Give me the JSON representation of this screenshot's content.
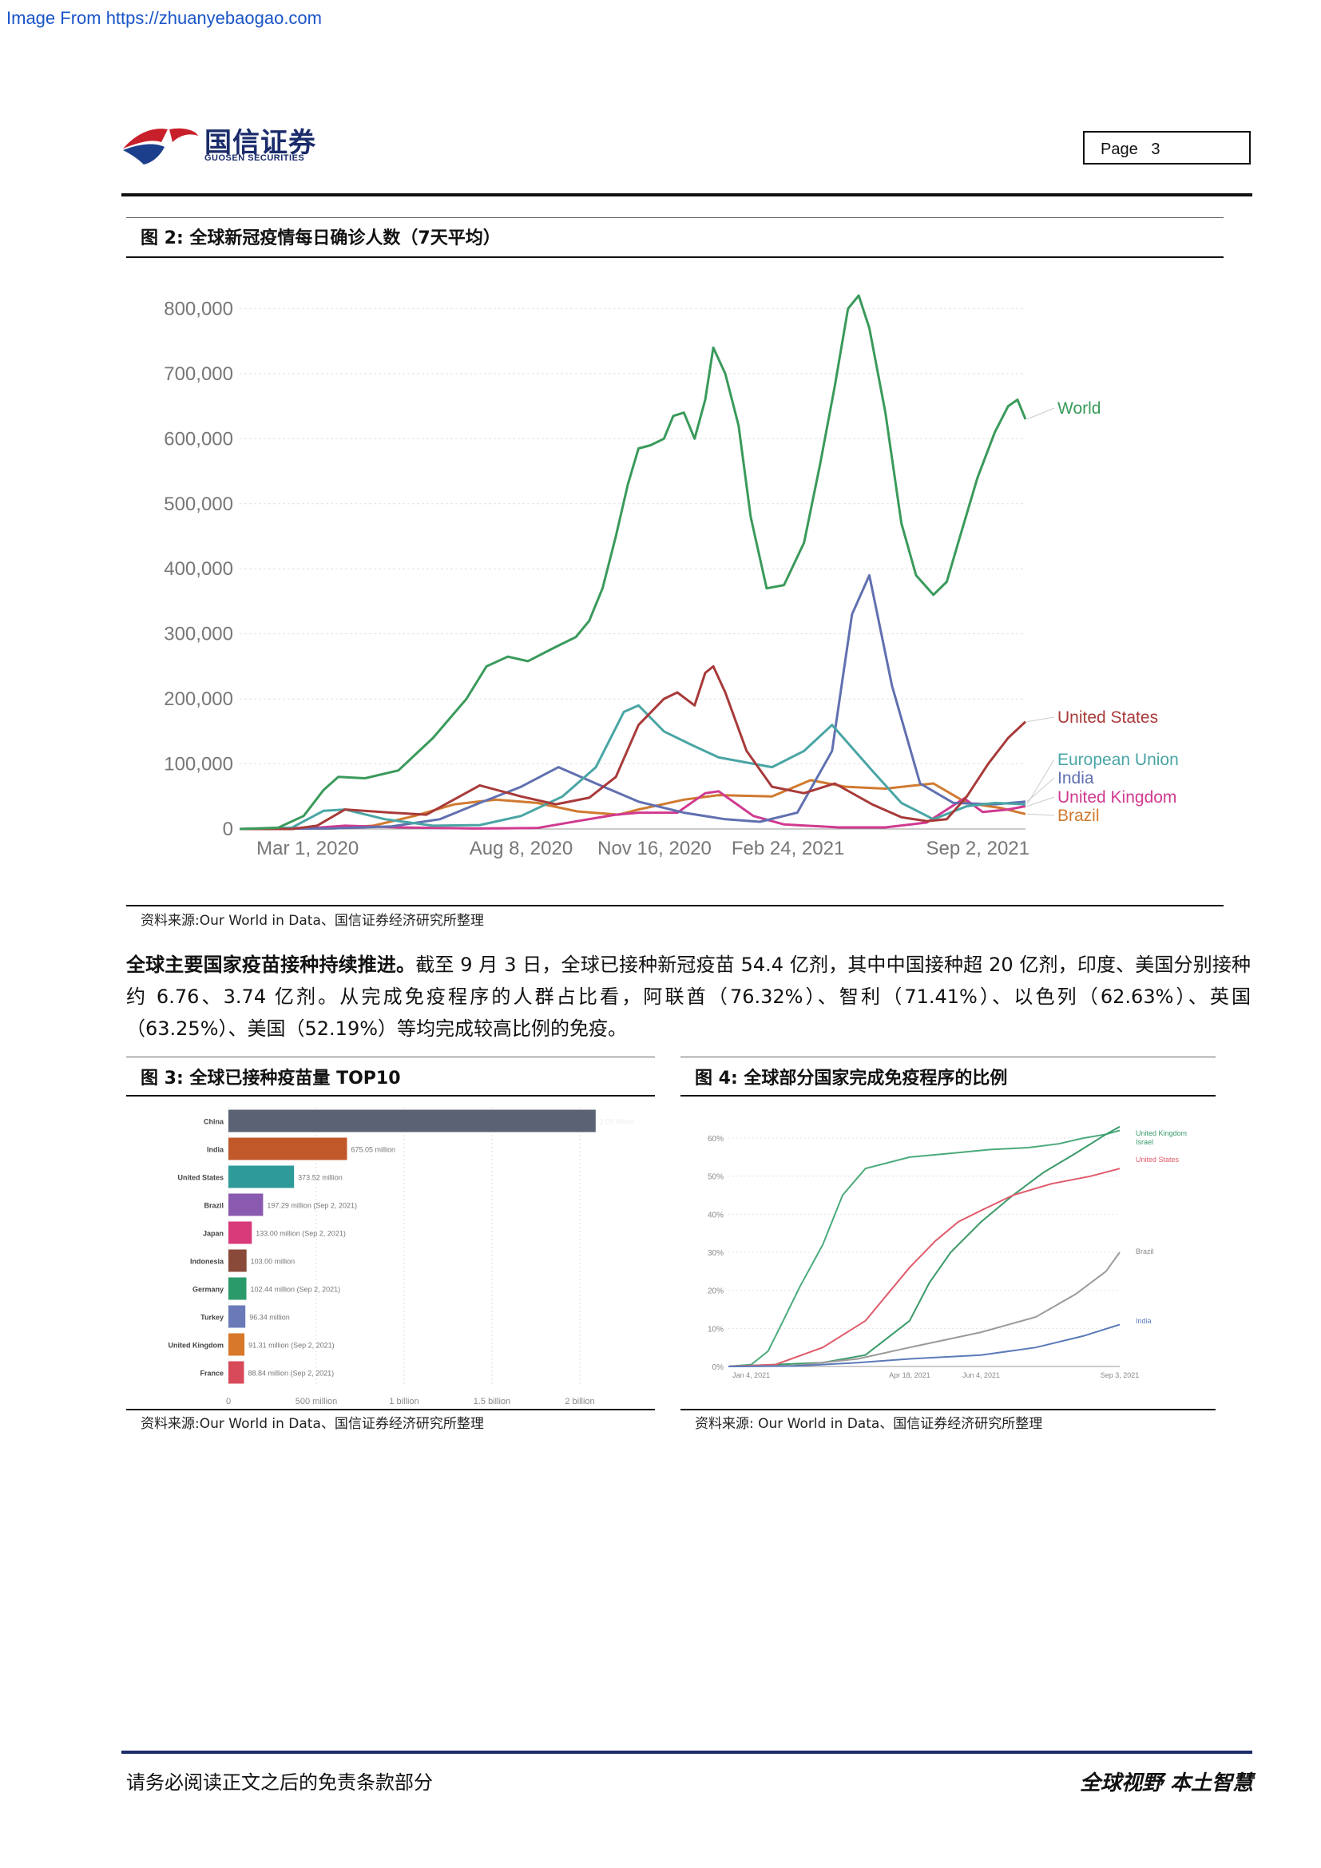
{
  "watermark": "Image From https://zhuanyebaogao.com",
  "header": {
    "logo_cn": "国信证券",
    "logo_en": "GUOSEN SECURITIES",
    "page_label": "Page",
    "page_number": "3"
  },
  "figure2": {
    "title": "图 2:  全球新冠疫情每日确诊人数（7天平均）",
    "source": "资料来源:Our World in Data、国信证券经济研究所整理",
    "chart_data": {
      "type": "line",
      "x_tick_labels": [
        "Mar 1, 2020",
        "Aug 8, 2020",
        "Nov 16, 2020",
        "Feb 24, 2021",
        "Sep 2, 2021"
      ],
      "y_tick_labels": [
        "0",
        "100,000",
        "200,000",
        "300,000",
        "400,000",
        "500,000",
        "600,000",
        "700,000",
        "800,000"
      ],
      "ylim": [
        0,
        830000
      ],
      "x_range": [
        "2020-01-22",
        "2021-09-02"
      ],
      "grid": true,
      "series": [
        {
          "name": "World",
          "color": "#3a9a5b",
          "x": [
            "2020-01-22",
            "2020-02-20",
            "2020-03-10",
            "2020-03-25",
            "2020-04-05",
            "2020-04-25",
            "2020-05-20",
            "2020-06-15",
            "2020-07-10",
            "2020-07-25",
            "2020-08-10",
            "2020-08-25",
            "2020-09-15",
            "2020-09-30",
            "2020-10-10",
            "2020-10-20",
            "2020-10-30",
            "2020-11-08",
            "2020-11-16",
            "2020-11-25",
            "2020-12-05",
            "2020-12-12",
            "2020-12-20",
            "2020-12-28",
            "2021-01-05",
            "2021-01-11",
            "2021-01-20",
            "2021-01-30",
            "2021-02-08",
            "2021-02-20",
            "2021-03-05",
            "2021-03-20",
            "2021-04-01",
            "2021-04-12",
            "2021-04-22",
            "2021-04-30",
            "2021-05-08",
            "2021-05-20",
            "2021-06-01",
            "2021-06-12",
            "2021-06-25",
            "2021-07-05",
            "2021-07-15",
            "2021-07-28",
            "2021-08-10",
            "2021-08-20",
            "2021-08-27",
            "2021-09-02"
          ],
          "y": [
            0,
            2000,
            20000,
            60000,
            80000,
            78000,
            90000,
            140000,
            200000,
            250000,
            265000,
            258000,
            280000,
            295000,
            320000,
            370000,
            450000,
            530000,
            585000,
            590000,
            600000,
            635000,
            640000,
            600000,
            660000,
            740000,
            700000,
            620000,
            480000,
            370000,
            375000,
            440000,
            560000,
            680000,
            800000,
            820000,
            770000,
            640000,
            470000,
            390000,
            360000,
            380000,
            450000,
            540000,
            610000,
            650000,
            660000,
            630000
          ]
        },
        {
          "name": "United States",
          "color": "#a83a3a",
          "x": [
            "2020-01-22",
            "2020-03-01",
            "2020-03-20",
            "2020-04-10",
            "2020-05-15",
            "2020-06-10",
            "2020-07-20",
            "2020-08-20",
            "2020-09-15",
            "2020-10-10",
            "2020-10-30",
            "2020-11-16",
            "2020-12-05",
            "2020-12-15",
            "2020-12-28",
            "2021-01-05",
            "2021-01-11",
            "2021-01-20",
            "2021-02-05",
            "2021-02-24",
            "2021-03-20",
            "2021-04-12",
            "2021-05-10",
            "2021-06-01",
            "2021-06-20",
            "2021-07-05",
            "2021-07-20",
            "2021-08-05",
            "2021-08-20",
            "2021-09-02"
          ],
          "y": [
            0,
            0,
            5000,
            30000,
            25000,
            22000,
            67000,
            50000,
            38000,
            48000,
            80000,
            160000,
            200000,
            210000,
            190000,
            240000,
            250000,
            210000,
            120000,
            65000,
            55000,
            70000,
            38000,
            18000,
            12000,
            15000,
            50000,
            100000,
            140000,
            165000
          ]
        },
        {
          "name": "European Union",
          "color": "#4aa5a5",
          "x": [
            "2020-01-22",
            "2020-03-01",
            "2020-03-25",
            "2020-04-10",
            "2020-05-10",
            "2020-06-15",
            "2020-07-20",
            "2020-08-20",
            "2020-09-20",
            "2020-10-15",
            "2020-11-05",
            "2020-11-16",
            "2020-12-05",
            "2020-12-25",
            "2021-01-15",
            "2021-02-24",
            "2021-03-20",
            "2021-04-10",
            "2021-05-10",
            "2021-06-01",
            "2021-06-25",
            "2021-07-20",
            "2021-08-10",
            "2021-09-02"
          ],
          "y": [
            0,
            2000,
            28000,
            30000,
            15000,
            5000,
            6000,
            20000,
            50000,
            95000,
            180000,
            190000,
            150000,
            130000,
            110000,
            95000,
            120000,
            160000,
            90000,
            40000,
            15000,
            35000,
            40000,
            38000
          ]
        },
        {
          "name": "India",
          "color": "#6070b0",
          "x": [
            "2020-01-22",
            "2020-04-01",
            "2020-05-15",
            "2020-06-20",
            "2020-07-20",
            "2020-08-20",
            "2020-09-17",
            "2020-10-15",
            "2020-11-16",
            "2020-12-20",
            "2021-01-20",
            "2021-02-15",
            "2021-03-15",
            "2021-04-10",
            "2021-04-25",
            "2021-05-08",
            "2021-05-25",
            "2021-06-15",
            "2021-07-10",
            "2021-08-10",
            "2021-09-02"
          ],
          "y": [
            0,
            1000,
            4000,
            15000,
            40000,
            65000,
            95000,
            70000,
            42000,
            25000,
            15000,
            11000,
            25000,
            120000,
            330000,
            390000,
            220000,
            70000,
            40000,
            38000,
            42000
          ]
        },
        {
          "name": "United Kingdom",
          "color": "#d03a90",
          "x": [
            "2020-01-22",
            "2020-03-20",
            "2020-04-10",
            "2020-05-20",
            "2020-07-15",
            "2020-09-01",
            "2020-10-01",
            "2020-10-30",
            "2020-11-16",
            "2020-12-15",
            "2021-01-05",
            "2021-01-15",
            "2021-02-10",
            "2021-03-05",
            "2021-04-15",
            "2021-05-20",
            "2021-06-20",
            "2021-07-18",
            "2021-08-01",
            "2021-08-20",
            "2021-09-02"
          ],
          "y": [
            0,
            2000,
            5000,
            2500,
            700,
            1500,
            12000,
            22000,
            25000,
            25000,
            55000,
            58000,
            20000,
            7000,
            2500,
            2500,
            10000,
            47000,
            26000,
            30000,
            35000
          ]
        },
        {
          "name": "Brazil",
          "color": "#d07a30",
          "x": [
            "2020-01-22",
            "2020-04-01",
            "2020-05-01",
            "2020-06-01",
            "2020-07-01",
            "2020-08-01",
            "2020-09-01",
            "2020-10-01",
            "2020-11-01",
            "2020-11-16",
            "2020-12-20",
            "2021-01-15",
            "2021-02-24",
            "2021-03-25",
            "2021-04-20",
            "2021-05-20",
            "2021-06-25",
            "2021-07-20",
            "2021-08-15",
            "2021-09-02"
          ],
          "y": [
            0,
            1000,
            5000,
            20000,
            38000,
            45000,
            40000,
            27000,
            22000,
            30000,
            45000,
            52000,
            50000,
            75000,
            65000,
            62000,
            70000,
            40000,
            32000,
            23000
          ]
        }
      ]
    }
  },
  "paragraph": {
    "lead": "全球主要国家疫苗接种持续推进。",
    "body": "截至 9 月 3 日，全球已接种新冠疫苗 54.4 亿剂，其中中国接种超 20 亿剂，印度、美国分别接种约 6.76、3.74 亿剂。从完成免疫程序的人群占比看，阿联酋（76.32%）、智利（71.41%）、以色列（62.63%）、英国（63.25%）、美国（52.19%）等均完成较高比例的免疫。"
  },
  "figure3": {
    "title": "图 3:  全球已接种疫苗量 TOP10",
    "source": "资料来源:Our World in Data、国信证券经济研究所整理",
    "chart_data": {
      "type": "bar",
      "orientation": "horizontal",
      "categories": [
        "China",
        "India",
        "United States",
        "Brazil",
        "Japan",
        "Indonesia",
        "Germany",
        "Turkey",
        "United Kingdom",
        "France"
      ],
      "values": [
        2.09,
        0.67505,
        0.37352,
        0.19729,
        0.133,
        0.103,
        0.10244,
        0.09634,
        0.09131,
        0.08884
      ],
      "value_labels": [
        "2.09 billion",
        "675.05 million",
        "373.52 million",
        "197.29 million (Sep 2, 2021)",
        "133.00 million (Sep 2, 2021)",
        "103.00 million",
        "102.44 million (Sep 2, 2021)",
        "96.34 million",
        "91.31 million (Sep 2, 2021)",
        "88.84 million (Sep 2, 2021)"
      ],
      "colors": [
        "#5a6274",
        "#c0582a",
        "#2e9a9a",
        "#8a5ab0",
        "#d83a7a",
        "#8a4a3a",
        "#2a9a6a",
        "#6a7ab8",
        "#d8782a",
        "#d84a5a"
      ],
      "x_tick_labels": [
        "0",
        "500 million",
        "1 billion",
        "1.5 billion",
        "2 billion"
      ],
      "xlim": [
        0,
        2.2
      ],
      "unit": "billion"
    }
  },
  "figure4": {
    "title": "图 4:  全球部分国家完成免疫程序的比例",
    "source": "资料来源: Our World in Data、国信证券经济研究所整理",
    "chart_data": {
      "type": "line",
      "x_tick_labels": [
        "Jan 4, 2021",
        "Apr 18, 2021",
        "Jun 4, 2021",
        "Sep 3, 2021"
      ],
      "y_tick_labels": [
        "0%",
        "10%",
        "20%",
        "30%",
        "40%",
        "50%",
        "60%"
      ],
      "ylim": [
        0,
        64
      ],
      "x_range": [
        "2020-12-20",
        "2021-09-03"
      ],
      "series": [
        {
          "name": "Israel",
          "color": "#4aaa7a",
          "x": [
            "2020-12-20",
            "2021-01-04",
            "2021-01-15",
            "2021-01-25",
            "2021-02-05",
            "2021-02-20",
            "2021-03-05",
            "2021-03-20",
            "2021-04-18",
            "2021-05-15",
            "2021-06-10",
            "2021-07-05",
            "2021-07-25",
            "2021-08-10",
            "2021-08-25",
            "2021-09-03"
          ],
          "y": [
            0,
            0.5,
            4,
            12,
            21,
            32,
            45,
            52,
            55,
            56,
            57,
            57.5,
            58.5,
            60,
            61,
            62
          ]
        },
        {
          "name": "United Kingdom",
          "color": "#3a9a6a",
          "x": [
            "2020-12-20",
            "2021-01-20",
            "2021-02-20",
            "2021-03-20",
            "2021-04-18",
            "2021-05-01",
            "2021-05-15",
            "2021-06-04",
            "2021-06-25",
            "2021-07-15",
            "2021-08-05",
            "2021-08-25",
            "2021-09-03"
          ],
          "y": [
            0,
            0.5,
            1,
            3,
            12,
            22,
            30,
            38,
            45,
            51,
            56,
            61,
            63
          ]
        },
        {
          "name": "United States",
          "color": "#e05a6a",
          "x": [
            "2020-12-20",
            "2021-01-20",
            "2021-02-20",
            "2021-03-20",
            "2021-04-18",
            "2021-05-05",
            "2021-05-20",
            "2021-06-04",
            "2021-06-25",
            "2021-07-20",
            "2021-08-15",
            "2021-09-03"
          ],
          "y": [
            0,
            0.5,
            5,
            12,
            26,
            33,
            38,
            41,
            45,
            48,
            50,
            52
          ]
        },
        {
          "name": "Brazil",
          "color": "#9a9a9a",
          "x": [
            "2020-12-20",
            "2021-02-01",
            "2021-03-15",
            "2021-04-18",
            "2021-06-04",
            "2021-07-10",
            "2021-08-05",
            "2021-08-25",
            "2021-09-03"
          ],
          "y": [
            0,
            0.2,
            2,
            5,
            9,
            13,
            19,
            25,
            30
          ]
        },
        {
          "name": "India",
          "color": "#5a7ab8",
          "x": [
            "2020-12-20",
            "2021-02-01",
            "2021-03-15",
            "2021-04-18",
            "2021-06-04",
            "2021-07-10",
            "2021-08-10",
            "2021-09-03"
          ],
          "y": [
            0,
            0.1,
            1,
            2,
            3,
            5,
            8,
            11
          ]
        }
      ],
      "legend_labels": [
        "United Kingdom",
        "Israel",
        "United States",
        "Brazil",
        "India"
      ]
    }
  },
  "footer": {
    "disclaimer": "请务必阅读正文之后的免责条款部分",
    "slogan": "全球视野  本土智慧"
  }
}
